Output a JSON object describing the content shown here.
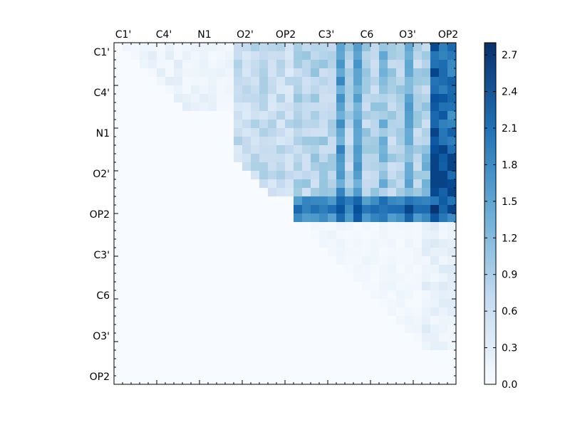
{
  "chart_data": {
    "type": "heatmap",
    "title": "",
    "xlabel": "",
    "ylabel": "",
    "rows": 40,
    "cols": 40,
    "colormap": "Blues",
    "colormap_low": "#f7fbff",
    "colormap_mid": "#6baed6",
    "colormap_high": "#08306b",
    "value_range": [
      0,
      2.8
    ],
    "x_tick_labels": [
      "C1'",
      "C4'",
      "N1",
      "O2'",
      "OP2",
      "C3'",
      "C6",
      "O3'",
      "OP2"
    ],
    "y_tick_labels": [
      "C1'",
      "C4'",
      "N1",
      "O2'",
      "OP2",
      "C3'",
      "C6",
      "O3'",
      "OP2"
    ],
    "colorbar_ticks": [
      "0.0",
      "0.3",
      "0.6",
      "0.9",
      "1.2",
      "1.5",
      "1.8",
      "2.1",
      "2.4",
      "2.7"
    ],
    "upper_triangle_only": true,
    "description_blocks": {
      "block_a_rows": [
        0,
        19
      ],
      "block_a_cols": [
        14,
        39
      ],
      "strong_band_rows": [
        18,
        20
      ],
      "block_b_rows": [
        21,
        35
      ],
      "block_b_cols": [
        23,
        39
      ]
    }
  }
}
